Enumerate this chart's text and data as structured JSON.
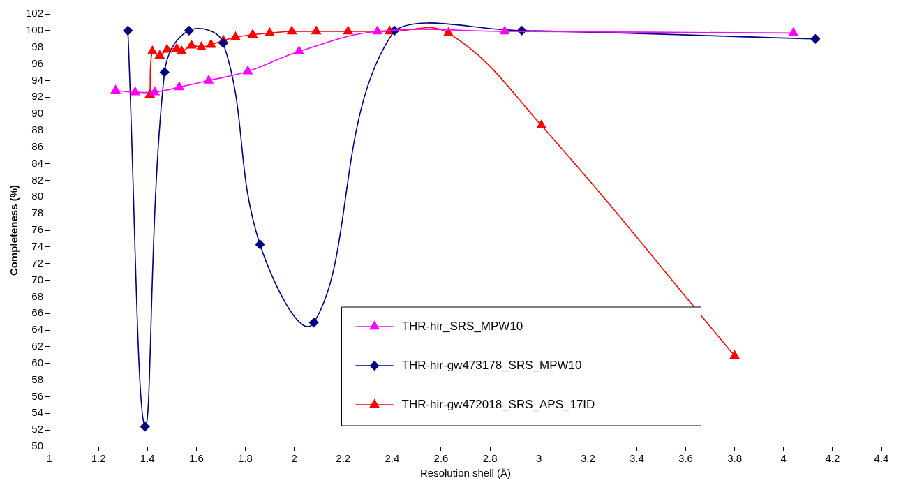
{
  "chart_data": {
    "type": "line",
    "xlabel": "Resolution shell (Å)",
    "ylabel": "Completeness (%)",
    "xlim": [
      1,
      4.4
    ],
    "xticks": [
      1,
      1.2,
      1.4,
      1.6,
      1.8,
      2,
      2.2,
      2.4,
      2.6,
      2.8,
      3,
      3.2,
      3.4,
      3.6,
      3.8,
      4,
      4.2,
      4.4
    ],
    "ylim": [
      50,
      102
    ],
    "yticks": [
      50,
      52,
      54,
      56,
      58,
      60,
      62,
      64,
      66,
      68,
      70,
      72,
      74,
      76,
      78,
      80,
      82,
      84,
      86,
      88,
      90,
      92,
      94,
      96,
      98,
      100,
      102
    ],
    "grid": false,
    "legend": "bottom",
    "line_style": "solid",
    "series": [
      {
        "name": "THR-hir_SRS_MPW10",
        "color": "#ff00ff",
        "marker": "triangle",
        "x": [
          1.27,
          1.35,
          1.43,
          1.53,
          1.65,
          1.81,
          2.02,
          2.34,
          2.86,
          4.04
        ],
        "values": [
          92.8,
          92.6,
          92.6,
          93.2,
          94,
          95.1,
          97.5,
          99.9,
          99.9,
          99.7
        ]
      },
      {
        "name": "THR-hir-gw473178_SRS_MPW10",
        "color": "#000080",
        "marker": "diamond",
        "x": [
          1.32,
          1.39,
          1.47,
          1.57,
          1.71,
          1.86,
          2.08,
          2.41,
          2.93,
          4.13
        ],
        "values": [
          100,
          52.4,
          95,
          100,
          98.5,
          74.3,
          64.9,
          100,
          100,
          99
        ]
      },
      {
        "name": "THR-hir-gw472018_SRS_APS_17ID",
        "color": "#ff0000",
        "marker": "triangle",
        "x": [
          1.41,
          1.42,
          1.45,
          1.48,
          1.52,
          1.54,
          1.58,
          1.62,
          1.66,
          1.71,
          1.76,
          1.83,
          1.9,
          1.99,
          2.09,
          2.22,
          2.39,
          2.63,
          3.01,
          3.8
        ],
        "values": [
          92.3,
          97.5,
          97,
          97.7,
          97.8,
          97.5,
          98.2,
          98,
          98.3,
          98.8,
          99.2,
          99.5,
          99.7,
          99.9,
          99.9,
          99.9,
          99.9,
          99.7,
          88.6,
          60.9
        ]
      }
    ]
  }
}
